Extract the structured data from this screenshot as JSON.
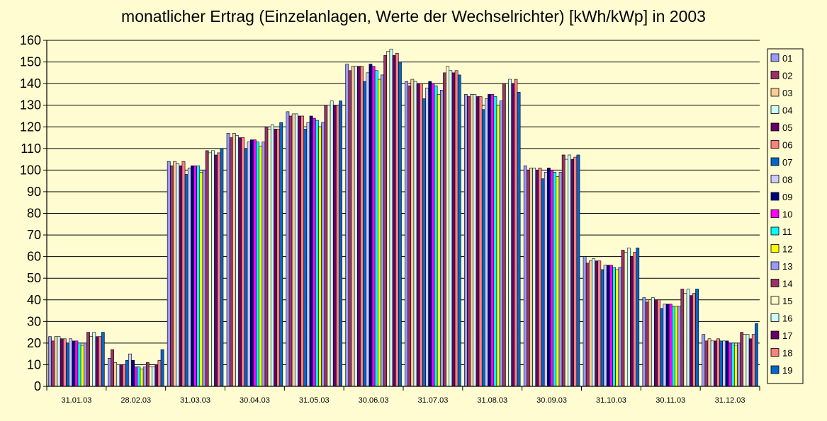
{
  "chart_data": {
    "type": "bar",
    "title": "monatlicher Ertrag (Einzelanlagen, Werte der Wechselrichter) [kWh/kWp] in 2003",
    "xlabel": "",
    "ylabel": "",
    "ylim": [
      0,
      160
    ],
    "yticks": [
      0,
      10,
      20,
      30,
      40,
      50,
      60,
      70,
      80,
      90,
      100,
      110,
      120,
      130,
      140,
      150,
      160
    ],
    "grid": true,
    "legend": "right",
    "categories": [
      "31.01.03",
      "28.02.03",
      "31.03.03",
      "30.04.03",
      "31.05.03",
      "30.06.03",
      "31.07.03",
      "31.08.03",
      "30.09.03",
      "31.10.03",
      "30.11.03",
      "31.12.03"
    ],
    "series": [
      {
        "name": "01",
        "color": "#9999ff",
        "values": [
          23,
          13,
          104,
          117,
          127,
          149,
          141,
          135,
          102,
          60,
          41,
          24
        ]
      },
      {
        "name": "02",
        "color": "#993366",
        "values": [
          21,
          17,
          102,
          115,
          125,
          146,
          139,
          134,
          100,
          57,
          39,
          21
        ]
      },
      {
        "name": "03",
        "color": "#ffcc99",
        "values": [
          23,
          11,
          104,
          117,
          126,
          148,
          142,
          135,
          101,
          58,
          40,
          22
        ]
      },
      {
        "name": "04",
        "color": "#ccffff",
        "values": [
          23,
          10,
          103,
          116,
          126,
          148,
          141,
          135,
          101,
          59,
          41,
          21
        ]
      },
      {
        "name": "05",
        "color": "#660066",
        "values": [
          22,
          10,
          102,
          115,
          125,
          148,
          140,
          134,
          100,
          58,
          40,
          21
        ]
      },
      {
        "name": "06",
        "color": "#ff8080",
        "values": [
          22,
          10,
          104,
          115,
          125,
          148,
          140,
          134,
          101,
          58,
          40,
          22
        ]
      },
      {
        "name": "07",
        "color": "#0066cc",
        "values": [
          20,
          12,
          98,
          110,
          119,
          141,
          133,
          128,
          96,
          54,
          36,
          21
        ]
      },
      {
        "name": "08",
        "color": "#ccccff",
        "values": [
          22,
          15,
          101,
          113,
          122,
          145,
          138,
          133,
          99,
          56,
          38,
          21
        ]
      },
      {
        "name": "09",
        "color": "#000080",
        "values": [
          21,
          12,
          102,
          114,
          125,
          149,
          141,
          135,
          101,
          56,
          38,
          21
        ]
      },
      {
        "name": "10",
        "color": "#ff00ff",
        "values": [
          21,
          9,
          102,
          114,
          124,
          148,
          140,
          135,
          100,
          56,
          38,
          20
        ]
      },
      {
        "name": "11",
        "color": "#00ffff",
        "values": [
          20,
          9,
          102,
          113,
          123,
          146,
          139,
          134,
          99,
          55,
          37,
          20
        ]
      },
      {
        "name": "12",
        "color": "#ffff00",
        "values": [
          19,
          8,
          99,
          111,
          120,
          142,
          135,
          130,
          97,
          54,
          37,
          19
        ]
      },
      {
        "name": "13",
        "color": "#9999ff",
        "values": [
          20,
          9,
          100,
          113,
          122,
          144,
          137,
          132,
          99,
          55,
          37,
          20
        ]
      },
      {
        "name": "14",
        "color": "#993366",
        "values": [
          25,
          11,
          109,
          120,
          130,
          153,
          145,
          140,
          107,
          63,
          45,
          25
        ]
      },
      {
        "name": "15",
        "color": "#ffffcc",
        "values": [
          23,
          9,
          108,
          119,
          130,
          155,
          148,
          140,
          105,
          62,
          43,
          24
        ]
      },
      {
        "name": "16",
        "color": "#ccffff",
        "values": [
          25,
          9,
          109,
          121,
          132,
          156,
          146,
          142,
          107,
          64,
          45,
          24
        ]
      },
      {
        "name": "17",
        "color": "#660066",
        "values": [
          23,
          10,
          107,
          119,
          130,
          153,
          145,
          140,
          105,
          60,
          42,
          22
        ]
      },
      {
        "name": "18",
        "color": "#ff8080",
        "values": [
          23,
          12,
          108,
          119,
          130,
          154,
          146,
          142,
          106,
          62,
          43,
          24
        ]
      },
      {
        "name": "19",
        "color": "#0066cc",
        "values": [
          25,
          17,
          110,
          122,
          132,
          150,
          144,
          136,
          107,
          64,
          45,
          29
        ]
      }
    ]
  }
}
